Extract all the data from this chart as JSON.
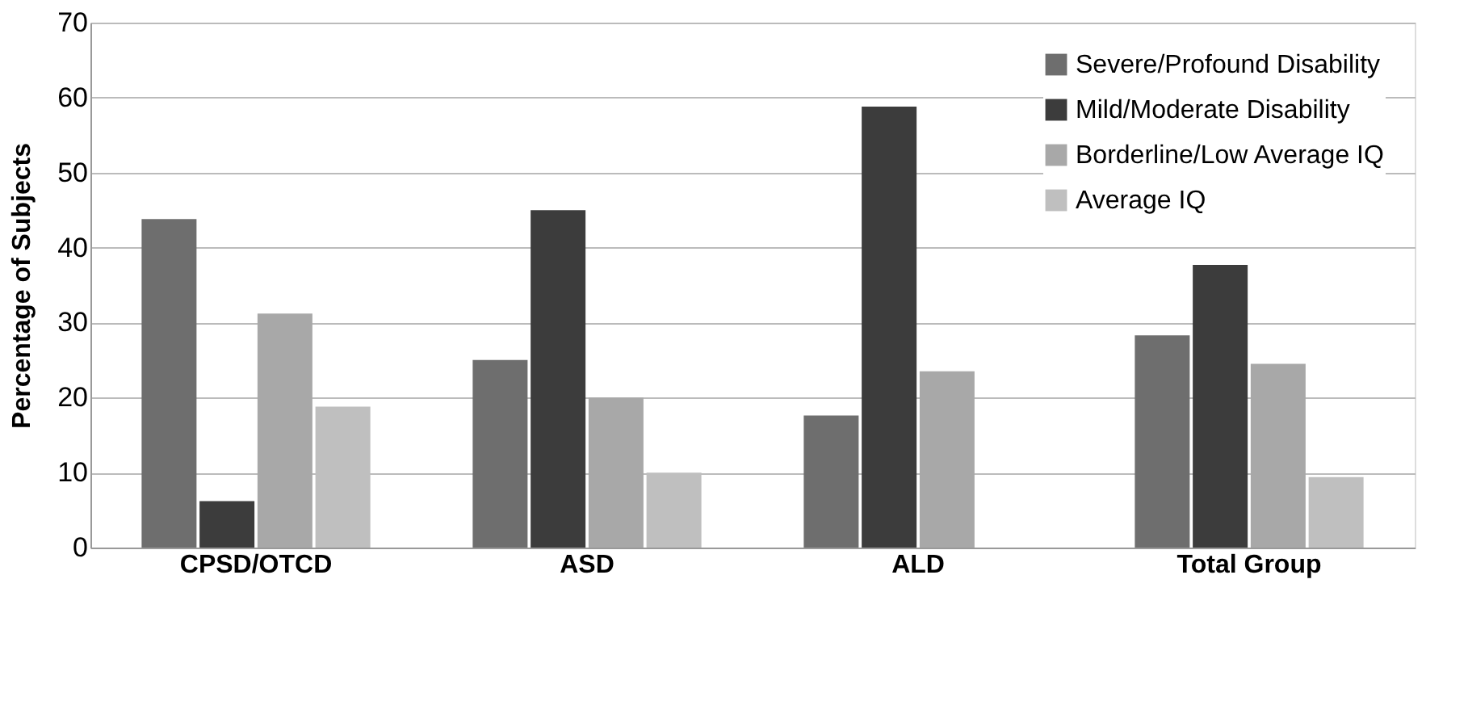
{
  "chart_data": {
    "type": "bar",
    "ylabel": "Percentage of Subjects",
    "categories": [
      "CPSD/OTCD",
      "ASD",
      "ALD",
      "Total Group"
    ],
    "series": [
      {
        "name": "Severe/Profound Disability",
        "color": "#6e6e6e",
        "values": [
          43.8,
          25.0,
          17.6,
          28.3
        ]
      },
      {
        "name": "Mild/Moderate Disability",
        "color": "#3c3c3c",
        "values": [
          6.2,
          45.0,
          58.8,
          37.7
        ]
      },
      {
        "name": "Borderline/Low Average IQ",
        "color": "#a8a8a8",
        "values": [
          31.2,
          20.0,
          23.5,
          24.5
        ]
      },
      {
        "name": "Average IQ",
        "color": "#bfbfbf",
        "values": [
          18.8,
          10.0,
          0,
          9.4
        ]
      }
    ],
    "ylim": [
      0,
      70
    ],
    "yticks": [
      0,
      10,
      20,
      30,
      40,
      50,
      60,
      70
    ],
    "grid": "y",
    "legend": "top right"
  }
}
